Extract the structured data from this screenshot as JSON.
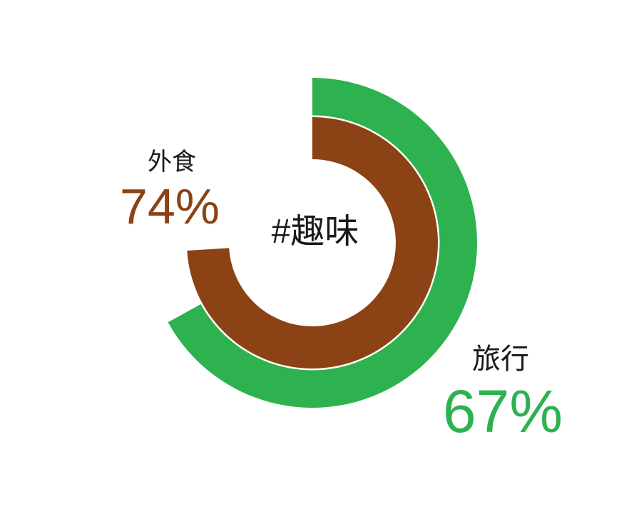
{
  "chart_data": {
    "type": "donut",
    "title": "#趣味",
    "unit": "%",
    "max": 100,
    "start_angle_deg": 0,
    "direction": "clockwise",
    "background": "#ffffff",
    "legend_position": "outside-labels",
    "series": [
      {
        "name": "旅行",
        "value": 67,
        "ring": "outer",
        "color": "#2db24f"
      },
      {
        "name": "外食",
        "value": 74,
        "ring": "inner",
        "color": "#8b4214"
      }
    ]
  },
  "labels": {
    "center_title": "#趣味",
    "travel_name": "旅行",
    "travel_value": "67%",
    "dining_name": "外食",
    "dining_value": "74%"
  },
  "colors": {
    "travel_green": "#2db24f",
    "dining_brown": "#8b4214",
    "text_black": "#1a1a1a",
    "background": "#ffffff"
  }
}
